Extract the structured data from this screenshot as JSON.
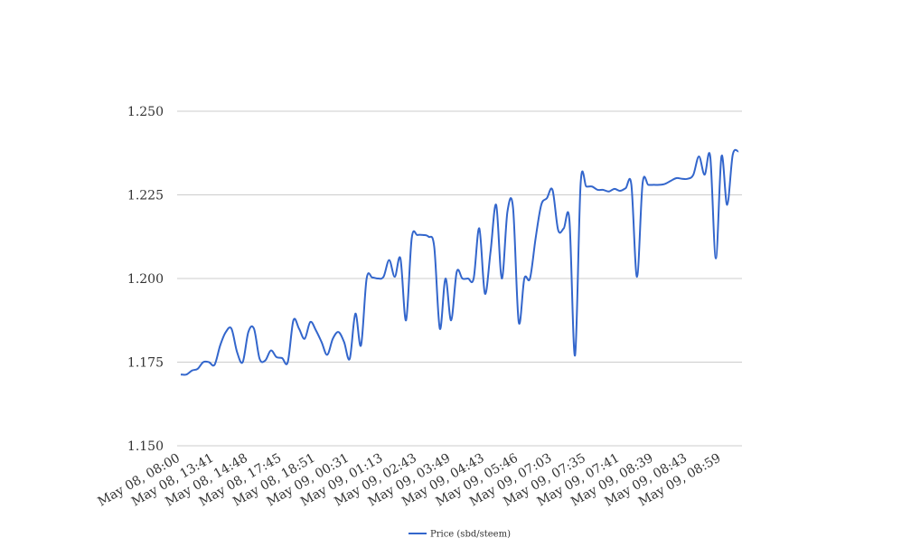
{
  "chart_data": {
    "type": "line",
    "title": "",
    "xlabel": "",
    "ylabel": "",
    "ylim": [
      1.15,
      1.25
    ],
    "y_ticks": [
      "1.150",
      "1.175",
      "1.200",
      "1.225",
      "1.250"
    ],
    "x_tick_labels": [
      "May 08, 08:00",
      "May 08, 13:41",
      "May 08, 14:48",
      "May 08, 17:45",
      "May 08, 18:51",
      "May 09, 00:31",
      "May 09, 01:13",
      "May 09, 02:43",
      "May 09, 03:49",
      "May 09, 04:43",
      "May 09, 05:46",
      "May 09, 07:03",
      "May 09, 07:35",
      "May 09, 07:41",
      "May 09, 08:39",
      "May 09, 08:43",
      "May 09, 08:59"
    ],
    "grid": true,
    "legend_position": "bottom",
    "series": [
      {
        "name": "Price (sbd/steem)",
        "color": "#3366cc",
        "values": [
          1.1713,
          1.1713,
          1.1725,
          1.173,
          1.175,
          1.175,
          1.1742,
          1.18,
          1.184,
          1.185,
          1.178,
          1.175,
          1.184,
          1.185,
          1.176,
          1.1755,
          1.1785,
          1.1765,
          1.1762,
          1.175,
          1.1875,
          1.185,
          1.182,
          1.187,
          1.1845,
          1.181,
          1.1772,
          1.182,
          1.184,
          1.181,
          1.176,
          1.1895,
          1.18,
          1.2,
          1.2003,
          1.2,
          1.2005,
          1.2055,
          1.2005,
          1.206,
          1.1875,
          1.212,
          1.213,
          1.213,
          1.2125,
          1.2095,
          1.185,
          1.2,
          1.1875,
          1.202,
          1.2,
          1.2,
          1.2,
          1.215,
          1.1955,
          1.208,
          1.222,
          1.2,
          1.22,
          1.221,
          1.187,
          1.2,
          1.2,
          1.212,
          1.222,
          1.224,
          1.2265,
          1.2145,
          1.215,
          1.2175,
          1.177,
          1.2285,
          1.2275,
          1.2275,
          1.2265,
          1.2265,
          1.226,
          1.2268,
          1.2262,
          1.227,
          1.228,
          1.2005,
          1.2285,
          1.228,
          1.228,
          1.228,
          1.2283,
          1.2292,
          1.23,
          1.2298,
          1.2298,
          1.231,
          1.2365,
          1.231,
          1.2365,
          1.206,
          1.2365,
          1.222,
          1.237,
          1.238
        ]
      }
    ]
  }
}
